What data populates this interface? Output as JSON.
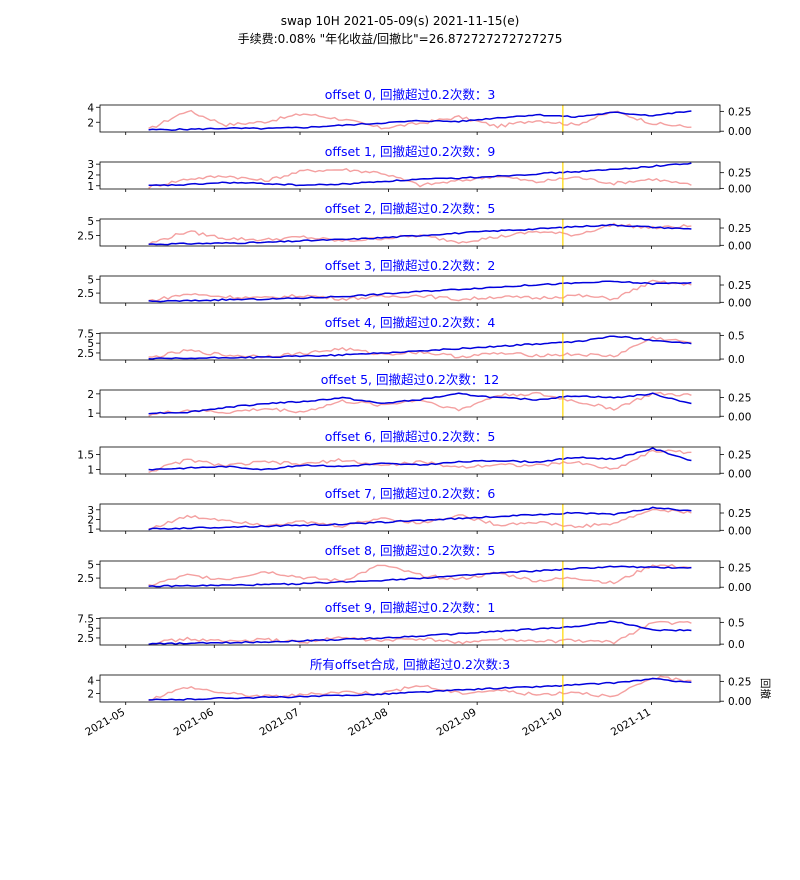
{
  "figure": {
    "title_line1": "swap 10H 2021-05-09(s) 2021-11-15(e)",
    "title_line2": "手续费:0.08% \"年化收益/回撤比\"=26.872727272727275",
    "right_ylabel": "回撤"
  },
  "colors": {
    "equity": "#0000dd",
    "drawdown": "#f4a0a0",
    "marker": "#ffd700",
    "title": "#0000ff"
  },
  "chart_data": {
    "type": "line",
    "x_range": [
      "2021-05-09",
      "2021-11-15"
    ],
    "x_ticks": [
      "2021-05",
      "2021-06",
      "2021-07",
      "2021-08",
      "2021-09",
      "2021-10",
      "2021-11"
    ],
    "vertical_marker": "2021-10-01",
    "series_legend": [],
    "panels": [
      {
        "title": "offset 0, 回撤超过0.2次数：3",
        "left_ticks": [
          2,
          4
        ],
        "left_ylim": [
          0.7,
          4.3
        ],
        "right_ticks": [
          "0.00",
          "0.25"
        ],
        "right_ylim": [
          -0.01,
          0.33
        ],
        "equity": [
          1.0,
          1.05,
          1.2,
          1.15,
          1.3,
          1.6,
          1.9,
          2.2,
          2.1,
          2.6,
          3.0,
          2.7,
          3.3,
          2.9,
          3.5
        ],
        "drawdown": [
          0.02,
          0.26,
          0.08,
          0.12,
          0.22,
          0.15,
          0.04,
          0.1,
          0.18,
          0.06,
          0.14,
          0.08,
          0.25,
          0.1,
          0.05
        ]
      },
      {
        "title": "offset 1, 回撤超过0.2次数：9",
        "left_ticks": [
          1,
          2,
          3
        ],
        "left_ylim": [
          0.7,
          3.2
        ],
        "right_ticks": [
          "0.00",
          "0.25"
        ],
        "right_ylim": [
          -0.01,
          0.42
        ],
        "equity": [
          1.0,
          1.1,
          1.3,
          1.2,
          1.05,
          1.15,
          1.4,
          1.6,
          1.7,
          1.9,
          2.1,
          2.3,
          2.5,
          2.8,
          3.1
        ],
        "drawdown": [
          0.02,
          0.15,
          0.2,
          0.12,
          0.28,
          0.3,
          0.25,
          0.05,
          0.12,
          0.2,
          0.1,
          0.18,
          0.08,
          0.15,
          0.05
        ]
      },
      {
        "title": "offset 2, 回撤超过0.2次数：5",
        "left_ticks": [
          2.5,
          5.0
        ],
        "left_ylim": [
          0.7,
          5.3
        ],
        "right_ticks": [
          "0.00",
          "0.25"
        ],
        "right_ylim": [
          -0.01,
          0.38
        ],
        "equity": [
          1.0,
          1.1,
          1.2,
          1.3,
          1.6,
          1.8,
          2.1,
          2.5,
          2.9,
          3.3,
          3.6,
          4.0,
          4.3,
          3.9,
          3.6
        ],
        "drawdown": [
          0.02,
          0.2,
          0.1,
          0.08,
          0.12,
          0.06,
          0.1,
          0.14,
          0.05,
          0.12,
          0.2,
          0.15,
          0.3,
          0.25,
          0.28
        ]
      },
      {
        "title": "offset 3, 回撤超过0.2次数：2",
        "left_ticks": [
          2.5,
          5.0
        ],
        "left_ylim": [
          0.7,
          5.6
        ],
        "right_ticks": [
          "0.00",
          "0.25"
        ],
        "right_ylim": [
          -0.01,
          0.38
        ],
        "equity": [
          1.0,
          1.1,
          1.3,
          1.4,
          1.6,
          1.9,
          2.3,
          2.8,
          3.2,
          3.6,
          4.0,
          4.3,
          4.6,
          4.2,
          4.4
        ],
        "drawdown": [
          0.02,
          0.12,
          0.08,
          0.06,
          0.1,
          0.05,
          0.08,
          0.1,
          0.04,
          0.08,
          0.06,
          0.1,
          0.05,
          0.3,
          0.25
        ]
      },
      {
        "title": "offset 4, 回撤超过0.2次数：4",
        "left_ticks": [
          2.5,
          5.0,
          7.5
        ],
        "left_ylim": [
          0.7,
          7.6
        ],
        "right_ticks": [
          "0.0",
          "0.5"
        ],
        "right_ylim": [
          -0.02,
          0.55
        ],
        "equity": [
          1.0,
          1.1,
          1.3,
          1.4,
          1.7,
          2.0,
          2.5,
          3.0,
          3.6,
          4.2,
          4.8,
          5.3,
          6.8,
          5.8,
          4.9
        ],
        "drawdown": [
          0.02,
          0.18,
          0.08,
          0.06,
          0.12,
          0.22,
          0.1,
          0.15,
          0.05,
          0.12,
          0.08,
          0.1,
          0.06,
          0.45,
          0.35
        ]
      },
      {
        "title": "offset 5, 回撤超过0.2次数：12",
        "left_ticks": [
          1,
          2
        ],
        "left_ylim": [
          0.8,
          2.2
        ],
        "right_ticks": [
          "0.00",
          "0.25"
        ],
        "right_ylim": [
          -0.01,
          0.35
        ],
        "equity": [
          1.0,
          1.05,
          1.3,
          1.5,
          1.6,
          1.8,
          1.5,
          1.7,
          2.0,
          1.8,
          1.7,
          1.9,
          1.8,
          2.0,
          1.5
        ],
        "drawdown": [
          0.02,
          0.08,
          0.05,
          0.1,
          0.06,
          0.2,
          0.15,
          0.22,
          0.08,
          0.28,
          0.3,
          0.2,
          0.1,
          0.3,
          0.28
        ]
      },
      {
        "title": "offset 6, 回撤超过0.2次数：5",
        "left_ticks": [
          1.0,
          1.5
        ],
        "left_ylim": [
          0.85,
          1.75
        ],
        "right_ticks": [
          "0.00",
          "0.25"
        ],
        "right_ylim": [
          -0.01,
          0.35
        ],
        "equity": [
          1.0,
          1.05,
          1.1,
          1.0,
          1.15,
          1.1,
          1.2,
          1.15,
          1.25,
          1.3,
          1.25,
          1.4,
          1.35,
          1.7,
          1.3
        ],
        "drawdown": [
          0.02,
          0.18,
          0.1,
          0.15,
          0.12,
          0.18,
          0.1,
          0.15,
          0.08,
          0.12,
          0.1,
          0.15,
          0.05,
          0.3,
          0.28
        ]
      },
      {
        "title": "offset 7, 回撤超过0.2次数：6",
        "left_ticks": [
          1,
          2,
          3
        ],
        "left_ylim": [
          0.8,
          3.6
        ],
        "right_ticks": [
          "0.00",
          "0.25"
        ],
        "right_ylim": [
          -0.01,
          0.38
        ],
        "equity": [
          1.0,
          1.1,
          1.2,
          1.3,
          1.4,
          1.5,
          1.7,
          1.9,
          2.1,
          2.3,
          2.5,
          2.7,
          2.5,
          3.2,
          2.9
        ],
        "drawdown": [
          0.02,
          0.2,
          0.15,
          0.08,
          0.12,
          0.06,
          0.18,
          0.1,
          0.22,
          0.08,
          0.12,
          0.05,
          0.1,
          0.3,
          0.25
        ]
      },
      {
        "title": "offset 8, 回撤超过0.2次数：5",
        "left_ticks": [
          2.5,
          5.0
        ],
        "left_ylim": [
          0.7,
          5.6
        ],
        "right_ticks": [
          "0.00",
          "0.25"
        ],
        "right_ylim": [
          -0.01,
          0.33
        ],
        "equity": [
          1.0,
          1.1,
          1.2,
          1.3,
          1.5,
          1.8,
          2.1,
          2.5,
          2.9,
          3.4,
          3.8,
          4.2,
          4.6,
          4.4,
          4.4
        ],
        "drawdown": [
          0.02,
          0.15,
          0.1,
          0.2,
          0.12,
          0.08,
          0.28,
          0.15,
          0.1,
          0.18,
          0.08,
          0.12,
          0.05,
          0.28,
          0.25
        ]
      },
      {
        "title": "offset 9, 回撤超过0.2次数：1",
        "left_ticks": [
          2.5,
          5.0,
          7.5
        ],
        "left_ylim": [
          0.7,
          7.6
        ],
        "right_ticks": [
          "0.0",
          "0.5"
        ],
        "right_ylim": [
          -0.02,
          0.6
        ],
        "equity": [
          1.0,
          1.1,
          1.3,
          1.5,
          1.8,
          2.1,
          2.5,
          3.0,
          3.6,
          4.2,
          4.8,
          5.4,
          6.8,
          4.5,
          4.4
        ],
        "drawdown": [
          0.02,
          0.12,
          0.06,
          0.1,
          0.05,
          0.15,
          0.08,
          0.12,
          0.04,
          0.1,
          0.06,
          0.08,
          0.04,
          0.5,
          0.48
        ]
      },
      {
        "title": "所有offset合成, 回撤超过0.2次数:3",
        "left_ticks": [
          2,
          4
        ],
        "left_ylim": [
          0.7,
          4.8
        ],
        "right_ticks": [
          "0.00",
          "0.25"
        ],
        "right_ylim": [
          -0.01,
          0.33
        ],
        "equity": [
          1.0,
          1.1,
          1.3,
          1.4,
          1.5,
          1.7,
          1.9,
          2.2,
          2.5,
          2.8,
          3.0,
          3.3,
          3.6,
          4.2,
          3.7
        ],
        "drawdown": [
          0.02,
          0.18,
          0.1,
          0.06,
          0.08,
          0.12,
          0.1,
          0.2,
          0.1,
          0.14,
          0.08,
          0.12,
          0.05,
          0.3,
          0.26
        ]
      }
    ]
  }
}
